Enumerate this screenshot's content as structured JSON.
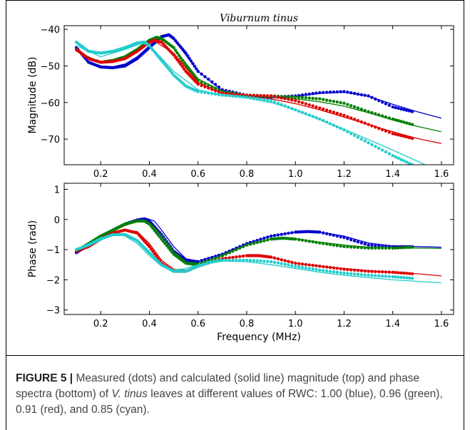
{
  "chart_data": [
    {
      "type": "line",
      "title": "Viburnum tinus",
      "xlabel": "",
      "ylabel": "Magnitude (dB)",
      "xlim": [
        0.05,
        1.65
      ],
      "ylim": [
        -77,
        -39
      ],
      "xticks": [
        0.2,
        0.4,
        0.6,
        0.8,
        1.0,
        1.2,
        1.4,
        1.6
      ],
      "xtick_labels": [
        "0.2",
        "0.4",
        "0.6",
        "0.8",
        "1.0",
        "1.2",
        "1.4",
        "1.6"
      ],
      "yticks": [
        -70,
        -60,
        -50,
        -40
      ],
      "ytick_labels": [
        "−70",
        "−60",
        "−50",
        "−40"
      ],
      "grid": false,
      "series": [
        {
          "color": "#0000cc",
          "measured": {
            "x": [
              0.1,
              0.15,
              0.2,
              0.25,
              0.3,
              0.35,
              0.4,
              0.45,
              0.48,
              0.5,
              0.55,
              0.6,
              0.7,
              0.8,
              0.9,
              1.0,
              1.1,
              1.2,
              1.3,
              1.4,
              1.48
            ],
            "y": [
              -45,
              -49,
              -50.3,
              -50.5,
              -50,
              -48,
              -45,
              -42,
              -41.5,
              -42.5,
              -46.5,
              -51.5,
              -56.5,
              -58,
              -58.5,
              -58.2,
              -57.3,
              -57,
              -58.2,
              -61.2,
              -62.5
            ]
          },
          "model": {
            "x": [
              0.1,
              0.15,
              0.2,
              0.25,
              0.3,
              0.35,
              0.4,
              0.45,
              0.48,
              0.5,
              0.55,
              0.6,
              0.7,
              0.8,
              0.9,
              1.0,
              1.1,
              1.2,
              1.3,
              1.4,
              1.5,
              1.6
            ],
            "y": [
              -45.5,
              -48.8,
              -50,
              -50.2,
              -49.5,
              -47.5,
              -44.5,
              -42,
              -41.8,
              -42.8,
              -47,
              -51.5,
              -56.8,
              -58.3,
              -58.7,
              -58.4,
              -57.5,
              -57.2,
              -58.3,
              -60.5,
              -62.5,
              -64.3
            ]
          }
        },
        {
          "color": "#007f00",
          "measured": {
            "x": [
              0.1,
              0.15,
              0.2,
              0.25,
              0.3,
              0.35,
              0.4,
              0.43,
              0.45,
              0.5,
              0.55,
              0.6,
              0.7,
              0.8,
              0.9,
              1.0,
              1.1,
              1.2,
              1.3,
              1.4,
              1.48
            ],
            "y": [
              -45.5,
              -48,
              -49,
              -48.5,
              -47.5,
              -45.5,
              -43,
              -42.2,
              -42.5,
              -45,
              -50,
              -54,
              -57,
              -58,
              -58.2,
              -58.5,
              -59,
              -60.2,
              -62.5,
              -64.5,
              -66
            ]
          },
          "model": {
            "x": [
              0.1,
              0.2,
              0.3,
              0.4,
              0.44,
              0.5,
              0.6,
              0.7,
              0.8,
              0.9,
              1.0,
              1.1,
              1.2,
              1.3,
              1.4,
              1.5,
              1.6
            ],
            "y": [
              -46,
              -49,
              -47.8,
              -43.3,
              -42.4,
              -45,
              -53.5,
              -57,
              -58.2,
              -58.6,
              -59,
              -59.8,
              -61,
              -62.8,
              -64.8,
              -66.5,
              -68
            ]
          }
        },
        {
          "color": "#dd0000",
          "measured": {
            "x": [
              0.1,
              0.15,
              0.2,
              0.25,
              0.3,
              0.35,
              0.4,
              0.42,
              0.45,
              0.5,
              0.55,
              0.6,
              0.7,
              0.8,
              0.9,
              1.0,
              1.1,
              1.2,
              1.3,
              1.4,
              1.48
            ],
            "y": [
              -45.5,
              -48,
              -49,
              -48.8,
              -48,
              -46,
              -43.5,
              -43,
              -43.5,
              -47,
              -51.5,
              -55,
              -57.5,
              -58,
              -58.2,
              -59.5,
              -61.5,
              -63.5,
              -66,
              -68.5,
              -69.8
            ]
          },
          "model": {
            "x": [
              0.1,
              0.2,
              0.3,
              0.4,
              0.42,
              0.5,
              0.6,
              0.7,
              0.8,
              0.9,
              1.0,
              1.1,
              1.2,
              1.3,
              1.4,
              1.5,
              1.6
            ],
            "y": [
              -46,
              -49.2,
              -48,
              -44,
              -43.2,
              -46.5,
              -54.5,
              -57.5,
              -58.4,
              -59,
              -60.3,
              -62,
              -64,
              -66,
              -68,
              -69.8,
              -71.2
            ]
          }
        },
        {
          "color": "#22cccc",
          "measured": {
            "x": [
              0.1,
              0.15,
              0.2,
              0.25,
              0.3,
              0.35,
              0.38,
              0.4,
              0.45,
              0.5,
              0.55,
              0.6,
              0.7,
              0.8,
              0.9,
              1.0,
              1.1,
              1.2,
              1.3,
              1.4,
              1.48
            ],
            "y": [
              -43.5,
              -46,
              -46.5,
              -46,
              -45,
              -43.7,
              -43.5,
              -44.5,
              -48.5,
              -52.5,
              -55.5,
              -57,
              -58,
              -58.5,
              -59.5,
              -62,
              -64.5,
              -67.5,
              -71,
              -74.5,
              -77
            ]
          },
          "model": {
            "x": [
              0.1,
              0.2,
              0.3,
              0.37,
              0.4,
              0.5,
              0.6,
              0.7,
              0.8,
              0.9,
              1.0,
              1.1,
              1.2,
              1.3,
              1.4,
              1.5,
              1.6
            ],
            "y": [
              -44.5,
              -47.5,
              -45.5,
              -43.8,
              -44.3,
              -51.5,
              -56.5,
              -58,
              -58.8,
              -60,
              -62,
              -64.7,
              -67.3,
              -70.1,
              -73,
              -76,
              -79
            ]
          }
        }
      ]
    },
    {
      "type": "line",
      "title": "",
      "xlabel": "Frequency (MHz)",
      "ylabel": "Phase (rad)",
      "xlim": [
        0.05,
        1.65
      ],
      "ylim": [
        -3.15,
        1.2
      ],
      "xticks": [
        0.2,
        0.4,
        0.6,
        0.8,
        1.0,
        1.2,
        1.4,
        1.6
      ],
      "xtick_labels": [
        "0.2",
        "0.4",
        "0.6",
        "0.8",
        "1.0",
        "1.2",
        "1.4",
        "1.6"
      ],
      "yticks": [
        -3,
        -2,
        -1,
        0,
        1
      ],
      "ytick_labels": [
        "−3",
        "−2",
        "−1",
        "0",
        "1"
      ],
      "grid": false,
      "series": [
        {
          "color": "#0000cc",
          "measured": {
            "x": [
              0.1,
              0.15,
              0.2,
              0.25,
              0.3,
              0.35,
              0.38,
              0.4,
              0.45,
              0.5,
              0.55,
              0.6,
              0.7,
              0.8,
              0.9,
              1.0,
              1.05,
              1.1,
              1.2,
              1.3,
              1.4,
              1.48
            ],
            "y": [
              -1.1,
              -0.85,
              -0.6,
              -0.35,
              -0.15,
              -0.02,
              0.02,
              -0.05,
              -0.5,
              -1.05,
              -1.35,
              -1.4,
              -1.15,
              -0.8,
              -0.55,
              -0.42,
              -0.4,
              -0.42,
              -0.6,
              -0.85,
              -0.9,
              -0.9
            ]
          },
          "model": {
            "x": [
              0.1,
              0.2,
              0.3,
              0.35,
              0.39,
              0.42,
              0.45,
              0.5,
              0.55,
              0.6,
              0.7,
              0.8,
              0.9,
              1.0,
              1.05,
              1.1,
              1.2,
              1.3,
              1.4,
              1.5,
              1.6
            ],
            "y": [
              -1.05,
              -0.6,
              -0.15,
              -0.02,
              0.03,
              -0.05,
              -0.35,
              -0.9,
              -1.3,
              -1.38,
              -1.15,
              -0.8,
              -0.55,
              -0.42,
              -0.4,
              -0.42,
              -0.55,
              -0.78,
              -0.88,
              -0.9,
              -0.92
            ]
          }
        },
        {
          "color": "#007f00",
          "measured": {
            "x": [
              0.1,
              0.15,
              0.2,
              0.25,
              0.3,
              0.35,
              0.38,
              0.4,
              0.45,
              0.5,
              0.55,
              0.6,
              0.7,
              0.8,
              0.9,
              0.95,
              1.0,
              1.1,
              1.2,
              1.3,
              1.4,
              1.48
            ],
            "y": [
              -1.05,
              -0.8,
              -0.55,
              -0.35,
              -0.15,
              -0.05,
              -0.05,
              -0.15,
              -0.65,
              -1.15,
              -1.45,
              -1.5,
              -1.2,
              -0.85,
              -0.65,
              -0.62,
              -0.65,
              -0.78,
              -0.9,
              -0.95,
              -0.95,
              -0.92
            ]
          },
          "model": {
            "x": [
              0.1,
              0.2,
              0.3,
              0.36,
              0.4,
              0.45,
              0.5,
              0.55,
              0.6,
              0.7,
              0.8,
              0.9,
              0.95,
              1.0,
              1.1,
              1.2,
              1.3,
              1.4,
              1.5,
              1.6
            ],
            "y": [
              -1.05,
              -0.6,
              -0.2,
              -0.05,
              -0.1,
              -0.5,
              -1.05,
              -1.4,
              -1.45,
              -1.2,
              -0.85,
              -0.65,
              -0.62,
              -0.64,
              -0.75,
              -0.85,
              -0.92,
              -0.94,
              -0.95,
              -0.96
            ]
          }
        },
        {
          "color": "#dd0000",
          "measured": {
            "x": [
              0.1,
              0.15,
              0.2,
              0.25,
              0.3,
              0.35,
              0.4,
              0.45,
              0.5,
              0.55,
              0.6,
              0.7,
              0.8,
              0.85,
              0.9,
              1.0,
              1.1,
              1.2,
              1.3,
              1.4,
              1.48
            ],
            "y": [
              -1.05,
              -0.9,
              -0.65,
              -0.45,
              -0.35,
              -0.45,
              -0.9,
              -1.45,
              -1.72,
              -1.72,
              -1.55,
              -1.3,
              -1.2,
              -1.2,
              -1.25,
              -1.45,
              -1.55,
              -1.65,
              -1.72,
              -1.75,
              -1.8
            ]
          },
          "model": {
            "x": [
              0.1,
              0.2,
              0.3,
              0.35,
              0.4,
              0.45,
              0.5,
              0.55,
              0.6,
              0.7,
              0.8,
              0.85,
              0.9,
              1.0,
              1.1,
              1.2,
              1.3,
              1.4,
              1.5,
              1.6
            ],
            "y": [
              -1.05,
              -0.65,
              -0.35,
              -0.4,
              -0.8,
              -1.35,
              -1.65,
              -1.68,
              -1.55,
              -1.3,
              -1.2,
              -1.2,
              -1.25,
              -1.45,
              -1.55,
              -1.63,
              -1.7,
              -1.75,
              -1.8,
              -1.87
            ]
          }
        },
        {
          "color": "#22cccc",
          "measured": {
            "x": [
              0.1,
              0.15,
              0.2,
              0.25,
              0.3,
              0.35,
              0.4,
              0.45,
              0.5,
              0.55,
              0.6,
              0.65,
              0.7,
              0.8,
              0.9,
              1.0,
              1.1,
              1.2,
              1.3,
              1.4,
              1.48
            ],
            "y": [
              -1.0,
              -0.85,
              -0.65,
              -0.5,
              -0.5,
              -0.7,
              -1.1,
              -1.5,
              -1.72,
              -1.72,
              -1.55,
              -1.42,
              -1.35,
              -1.35,
              -1.4,
              -1.55,
              -1.68,
              -1.78,
              -1.85,
              -1.9,
              -1.95
            ]
          },
          "model": {
            "x": [
              0.1,
              0.2,
              0.27,
              0.3,
              0.35,
              0.4,
              0.45,
              0.5,
              0.55,
              0.6,
              0.7,
              0.8,
              0.9,
              1.0,
              1.1,
              1.2,
              1.3,
              1.4,
              1.5,
              1.6
            ],
            "y": [
              -1.0,
              -0.6,
              -0.5,
              -0.55,
              -0.8,
              -1.2,
              -1.55,
              -1.68,
              -1.62,
              -1.5,
              -1.38,
              -1.4,
              -1.5,
              -1.62,
              -1.75,
              -1.85,
              -1.93,
              -2.0,
              -2.05,
              -2.1
            ]
          }
        }
      ]
    }
  ],
  "caption": {
    "label": "FIGURE 5 |",
    "text_1": " Measured (dots) and calculated (solid line) magnitude (top) and phase spectra (bottom) of ",
    "species": "V. tinus",
    "text_2": " leaves at different values of RWC: 1.00 (blue), 0.96 (green), 0.91 (red), and 0.85 (cyan)."
  }
}
